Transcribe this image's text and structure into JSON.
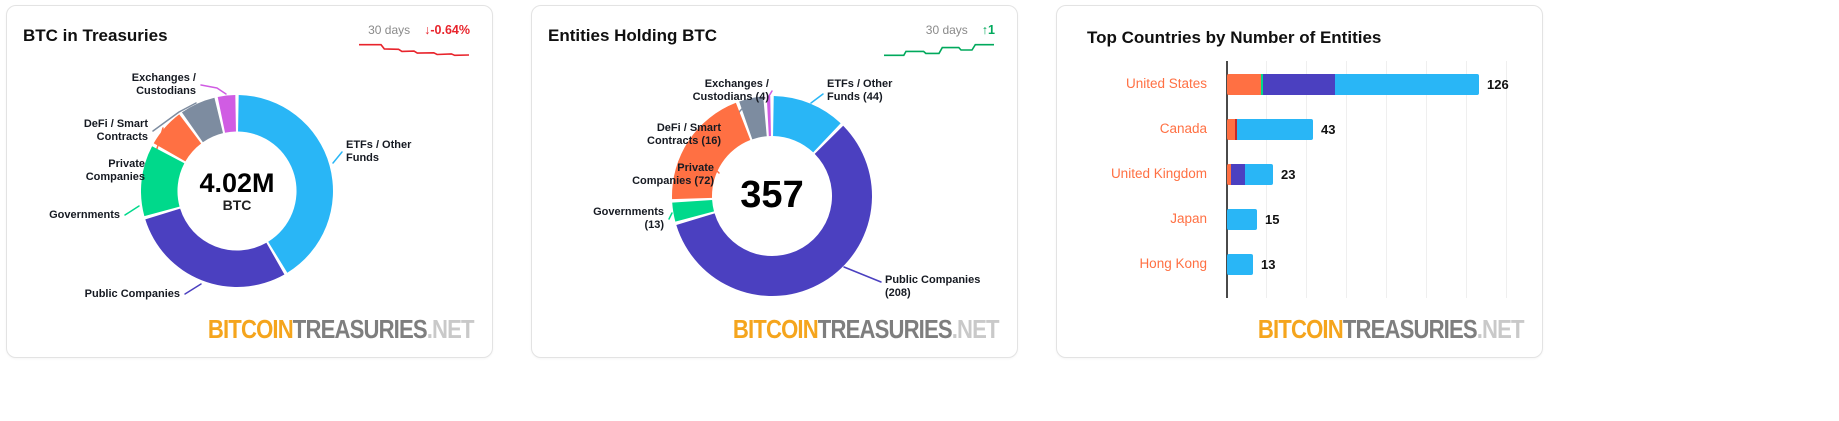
{
  "colors": {
    "etfs": "#29b6f6",
    "public_companies": "#4b40c0",
    "governments": "#00d98b",
    "private_companies": "#ff7043",
    "defi": "#7d8ca0",
    "exchanges": "#d05ce3",
    "canada_other": "#c62828",
    "negative": "#e8242c",
    "positive": "#00a95c",
    "country_label": "#ff7043",
    "watermark_bitcoin": "#f5a51d",
    "watermark_treasuries": "#7e7e7e",
    "watermark_net": "#c9c9c9"
  },
  "watermark": {
    "bitcoin": "BITCOIN",
    "treasuries": "TREASURIES",
    "net": ".NET"
  },
  "chart_data": [
    {
      "type": "pie",
      "variant": "donut",
      "title": "BTC in Treasuries",
      "period": "30 days",
      "change": "↓-0.64%",
      "change_direction": "down",
      "center_value": "4.02M",
      "center_unit": "BTC",
      "segments": [
        {
          "label": "ETFs / Other Funds",
          "label_lines": [
            "ETFs / Other",
            "Funds"
          ],
          "share_pct": 41.5,
          "color": "#29b6f6"
        },
        {
          "label": "Public Companies",
          "label_lines": [
            "Public Companies"
          ],
          "share_pct": 29,
          "color": "#4b40c0"
        },
        {
          "label": "Governments",
          "label_lines": [
            "Governments"
          ],
          "share_pct": 12.5,
          "color": "#00d98b"
        },
        {
          "label": "Private Companies",
          "label_lines": [
            "Private",
            "Companies"
          ],
          "share_pct": 7,
          "color": "#ff7043"
        },
        {
          "label": "DeFi / Smart Contracts",
          "label_lines": [
            "DeFi / Smart",
            "Contracts"
          ],
          "share_pct": 6.5,
          "color": "#7d8ca0"
        },
        {
          "label": "Exchanges / Custodians",
          "label_lines": [
            "Exchanges /",
            "Custodians"
          ],
          "share_pct": 3.5,
          "color": "#d05ce3"
        }
      ],
      "sparkline": {
        "color": "#e8242c",
        "points": [
          [
            0,
            0.12
          ],
          [
            0.2,
            0.12
          ],
          [
            0.23,
            0.42
          ],
          [
            0.36,
            0.45
          ],
          [
            0.39,
            0.6
          ],
          [
            0.5,
            0.58
          ],
          [
            0.53,
            0.72
          ],
          [
            0.68,
            0.7
          ],
          [
            0.71,
            0.82
          ],
          [
            0.84,
            0.78
          ],
          [
            0.87,
            0.88
          ],
          [
            1,
            0.86
          ]
        ]
      }
    },
    {
      "type": "pie",
      "variant": "donut",
      "title": "Entities Holding BTC",
      "period": "30 days",
      "change": "↑1",
      "change_direction": "up",
      "center_value": "357",
      "segments": [
        {
          "label": "ETFs / Other Funds",
          "label_lines": [
            "ETFs / Other",
            "Funds (44)"
          ],
          "value": 44,
          "color": "#29b6f6"
        },
        {
          "label": "Public Companies",
          "label_lines": [
            "Public Companies",
            "(208)"
          ],
          "value": 208,
          "color": "#4b40c0"
        },
        {
          "label": "Governments",
          "label_lines": [
            "Governments",
            "(13)"
          ],
          "value": 13,
          "color": "#00d98b"
        },
        {
          "label": "Private Companies",
          "label_lines": [
            "Private",
            "Companies (72)"
          ],
          "value": 72,
          "color": "#ff7043"
        },
        {
          "label": "DeFi / Smart Contracts",
          "label_lines": [
            "DeFi / Smart",
            "Contracts (16)"
          ],
          "value": 16,
          "color": "#7d8ca0"
        },
        {
          "label": "Exchanges / Custodians",
          "label_lines": [
            "Exchanges /",
            "Custodians (4)"
          ],
          "value": 4,
          "color": "#d05ce3"
        }
      ],
      "sparkline": {
        "color": "#00a95c",
        "points": [
          [
            0,
            0.88
          ],
          [
            0.18,
            0.88
          ],
          [
            0.2,
            0.6
          ],
          [
            0.36,
            0.6
          ],
          [
            0.38,
            0.74
          ],
          [
            0.5,
            0.74
          ],
          [
            0.53,
            0.33
          ],
          [
            0.68,
            0.33
          ],
          [
            0.7,
            0.5
          ],
          [
            0.8,
            0.5
          ],
          [
            0.83,
            0.12
          ],
          [
            1,
            0.12
          ]
        ]
      }
    },
    {
      "type": "bar",
      "orientation": "horizontal",
      "title": "Top Countries by Number of Entities",
      "categories": [
        "United States",
        "Canada",
        "United Kingdom",
        "Japan",
        "Hong Kong"
      ],
      "values": [
        126,
        43,
        23,
        15,
        13
      ],
      "xlim": [
        0,
        150
      ],
      "grid": true,
      "stacks": [
        [
          {
            "color": "#ff7043",
            "value": 17
          },
          {
            "color": "#00d98b",
            "value": 1
          },
          {
            "color": "#4b40c0",
            "value": 36
          },
          {
            "color": "#29b6f6",
            "value": 72
          }
        ],
        [
          {
            "color": "#ff7043",
            "value": 4
          },
          {
            "color": "#c62828",
            "value": 1
          },
          {
            "color": "#29b6f6",
            "value": 38
          }
        ],
        [
          {
            "color": "#ff7043",
            "value": 2
          },
          {
            "color": "#4b40c0",
            "value": 7
          },
          {
            "color": "#29b6f6",
            "value": 14
          }
        ],
        [
          {
            "color": "#29b6f6",
            "value": 15
          }
        ],
        [
          {
            "color": "#29b6f6",
            "value": 13
          }
        ]
      ]
    }
  ]
}
